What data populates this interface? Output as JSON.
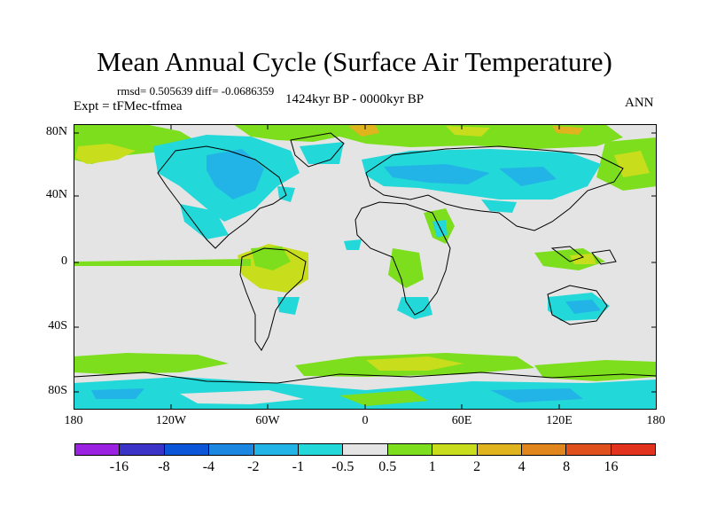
{
  "header": {
    "title": "Mean Annual Cycle (Surface Air Temperature)",
    "stats": "rmsd= 0.505639 diff= -0.0686359",
    "experiment": "Expt = tFMec-tfmea",
    "period": "1424kyr BP - 0000kyr BP",
    "season": "ANN"
  },
  "map": {
    "y_axis_labels": [
      "80N",
      "40N",
      "0",
      "40S",
      "80S"
    ],
    "x_axis_labels": [
      "180",
      "120W",
      "60W",
      "0",
      "60E",
      "120E",
      "180"
    ]
  },
  "colorbar": {
    "labels": [
      "-16",
      "-8",
      "-4",
      "-2",
      "-1",
      "-0.5",
      "0.5",
      "1",
      "2",
      "4",
      "8",
      "16"
    ],
    "colors": [
      "#9b22e0",
      "#3b33c8",
      "#0b55d8",
      "#1b87e0",
      "#22b4e6",
      "#22d8d8",
      "#e4e4e4",
      "#7cde1c",
      "#c8de1c",
      "#e0b41c",
      "#e0861c",
      "#e0501c",
      "#e0321c"
    ]
  }
}
